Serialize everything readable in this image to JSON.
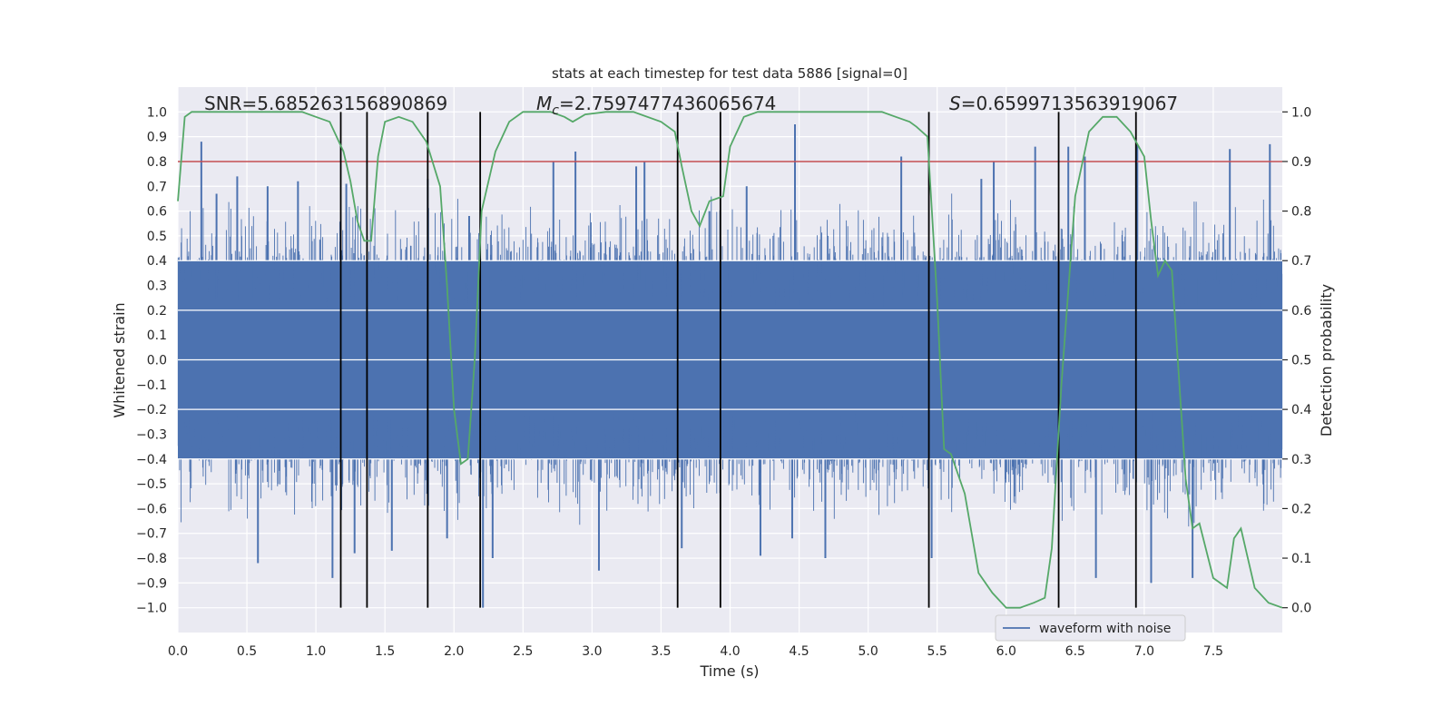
{
  "chart_data": {
    "type": "line",
    "title": "stats at each timestep for test data 5886 [signal=0]",
    "xlabel": "Time (s)",
    "ylabel": "Whitened strain",
    "y2label": "Detection probability",
    "xlim": [
      0.0,
      8.0
    ],
    "ylim": [
      -1.1,
      1.1
    ],
    "y2lim": [
      -0.05,
      1.05
    ],
    "xticks": [
      "0.0",
      "0.5",
      "1.0",
      "1.5",
      "2.0",
      "2.5",
      "3.0",
      "3.5",
      "4.0",
      "4.5",
      "5.0",
      "5.5",
      "6.0",
      "6.5",
      "7.0",
      "7.5"
    ],
    "yticks": [
      "1.0",
      "0.9",
      "0.8",
      "0.7",
      "0.6",
      "0.5",
      "0.4",
      "0.3",
      "0.2",
      "0.1",
      "0.0",
      "−0.1",
      "−0.2",
      "−0.3",
      "−0.4",
      "−0.5",
      "−0.6",
      "−0.7",
      "−0.8",
      "−0.9",
      "−1.0"
    ],
    "y2ticks": [
      "1.0",
      "0.9",
      "0.8",
      "0.7",
      "0.6",
      "0.5",
      "0.4",
      "0.3",
      "0.2",
      "0.1",
      "0.0"
    ],
    "annotations": {
      "snr": "SNR=5.685263156890869",
      "mc_symbol": "M",
      "mc_sub": "c",
      "mc_value": "=2.7597477436065674",
      "s_symbol": "S",
      "s_value": "=0.6599713563919067"
    },
    "legend": {
      "label": "waveform with noise",
      "location": "lower-right"
    },
    "threshold": 0.9,
    "waveform": {
      "name": "waveform with noise",
      "color": "#4c72b0",
      "core_amplitude": 0.4,
      "peaks": [
        [
          0.17,
          0.88
        ],
        [
          0.28,
          0.67
        ],
        [
          0.43,
          0.74
        ],
        [
          0.58,
          -0.82
        ],
        [
          0.65,
          0.7
        ],
        [
          0.87,
          0.72
        ],
        [
          1.12,
          -0.88
        ],
        [
          1.22,
          0.71
        ],
        [
          1.28,
          -0.78
        ],
        [
          1.55,
          -0.77
        ],
        [
          1.81,
          0.73
        ],
        [
          1.95,
          -0.72
        ],
        [
          2.11,
          0.58
        ],
        [
          2.21,
          -1.0
        ],
        [
          2.28,
          -0.8
        ],
        [
          2.72,
          0.8
        ],
        [
          2.88,
          0.84
        ],
        [
          3.05,
          -0.85
        ],
        [
          3.32,
          0.78
        ],
        [
          3.38,
          0.8
        ],
        [
          3.65,
          -0.76
        ],
        [
          3.85,
          0.6
        ],
        [
          4.12,
          0.7
        ],
        [
          4.22,
          -0.79
        ],
        [
          4.47,
          0.95
        ],
        [
          4.45,
          -0.72
        ],
        [
          4.69,
          -0.8
        ],
        [
          5.24,
          0.82
        ],
        [
          5.46,
          -0.8
        ],
        [
          5.82,
          0.73
        ],
        [
          5.91,
          0.8
        ],
        [
          6.21,
          0.86
        ],
        [
          6.45,
          0.86
        ],
        [
          6.57,
          0.82
        ],
        [
          6.95,
          0.87
        ],
        [
          7.05,
          -0.9
        ],
        [
          7.35,
          -0.88
        ],
        [
          7.62,
          0.85
        ],
        [
          7.91,
          0.87
        ],
        [
          6.65,
          -0.88
        ]
      ]
    },
    "detection_probability": {
      "name": "Detection probability",
      "color": "#55a868",
      "points": [
        [
          0.0,
          0.82
        ],
        [
          0.05,
          0.99
        ],
        [
          0.1,
          1.0
        ],
        [
          0.3,
          1.0
        ],
        [
          0.6,
          1.0
        ],
        [
          0.9,
          1.0
        ],
        [
          1.0,
          0.99
        ],
        [
          1.1,
          0.98
        ],
        [
          1.2,
          0.92
        ],
        [
          1.25,
          0.86
        ],
        [
          1.3,
          0.78
        ],
        [
          1.35,
          0.74
        ],
        [
          1.4,
          0.74
        ],
        [
          1.45,
          0.91
        ],
        [
          1.5,
          0.98
        ],
        [
          1.6,
          0.99
        ],
        [
          1.7,
          0.98
        ],
        [
          1.8,
          0.94
        ],
        [
          1.9,
          0.85
        ],
        [
          1.95,
          0.65
        ],
        [
          2.0,
          0.4
        ],
        [
          2.05,
          0.29
        ],
        [
          2.1,
          0.3
        ],
        [
          2.15,
          0.5
        ],
        [
          2.2,
          0.8
        ],
        [
          2.3,
          0.92
        ],
        [
          2.4,
          0.98
        ],
        [
          2.5,
          1.0
        ],
        [
          2.7,
          1.0
        ],
        [
          2.8,
          0.99
        ],
        [
          2.86,
          0.98
        ],
        [
          2.95,
          0.995
        ],
        [
          3.1,
          1.0
        ],
        [
          3.3,
          1.0
        ],
        [
          3.5,
          0.98
        ],
        [
          3.6,
          0.96
        ],
        [
          3.65,
          0.89
        ],
        [
          3.72,
          0.8
        ],
        [
          3.78,
          0.77
        ],
        [
          3.85,
          0.82
        ],
        [
          3.95,
          0.83
        ],
        [
          4.0,
          0.93
        ],
        [
          4.1,
          0.99
        ],
        [
          4.2,
          1.0
        ],
        [
          4.5,
          1.0
        ],
        [
          5.0,
          1.0
        ],
        [
          5.1,
          1.0
        ],
        [
          5.2,
          0.99
        ],
        [
          5.3,
          0.98
        ],
        [
          5.35,
          0.97
        ],
        [
          5.43,
          0.95
        ],
        [
          5.5,
          0.62
        ],
        [
          5.55,
          0.32
        ],
        [
          5.6,
          0.31
        ],
        [
          5.7,
          0.23
        ],
        [
          5.8,
          0.07
        ],
        [
          5.9,
          0.03
        ],
        [
          6.0,
          0.0
        ],
        [
          6.1,
          0.0
        ],
        [
          6.2,
          0.01
        ],
        [
          6.28,
          0.02
        ],
        [
          6.33,
          0.12
        ],
        [
          6.4,
          0.45
        ],
        [
          6.5,
          0.83
        ],
        [
          6.6,
          0.96
        ],
        [
          6.7,
          0.99
        ],
        [
          6.8,
          0.99
        ],
        [
          6.9,
          0.96
        ],
        [
          7.0,
          0.91
        ],
        [
          7.05,
          0.78
        ],
        [
          7.1,
          0.67
        ],
        [
          7.15,
          0.7
        ],
        [
          7.2,
          0.68
        ],
        [
          7.3,
          0.26
        ],
        [
          7.35,
          0.16
        ],
        [
          7.4,
          0.17
        ],
        [
          7.5,
          0.06
        ],
        [
          7.6,
          0.04
        ],
        [
          7.65,
          0.14
        ],
        [
          7.7,
          0.16
        ],
        [
          7.8,
          0.04
        ],
        [
          7.9,
          0.01
        ],
        [
          8.0,
          0.0
        ]
      ]
    },
    "event_markers_s": [
      1.18,
      1.37,
      1.81,
      2.19,
      3.62,
      3.93,
      5.44,
      6.38,
      6.94
    ]
  }
}
